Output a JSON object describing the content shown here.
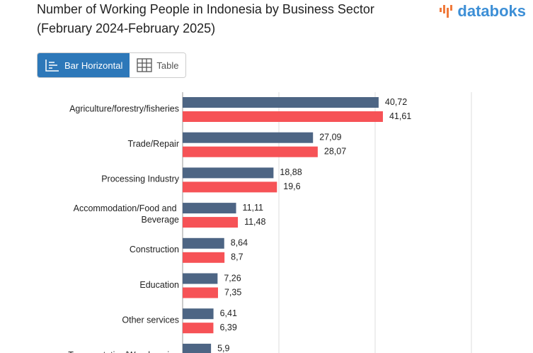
{
  "header": {
    "title_line1": "Number of Working People in Indonesia by Business Sector",
    "title_line2": "(February 2024-February 2025)",
    "logo": "databoks"
  },
  "buttons": [
    "Bar Horizontal",
    "Table"
  ],
  "chart_data": {
    "type": "bar_horizontal",
    "categories": [
      "Agriculture/forestry/fisheries",
      "Trade/Repair",
      "Processing Industry",
      "Accommodation/Food and Beverage",
      "Construction",
      "Education",
      "Other services",
      "Transportation/Warehousing"
    ],
    "series": [
      {
        "color": "#4d6584",
        "values": [
          40.72,
          27.09,
          18.88,
          11.11,
          8.64,
          7.26,
          6.41,
          5.9
        ],
        "value_labels": [
          "40,72",
          "27,09",
          "18,88",
          "11,11",
          "8,64",
          "7,26",
          "6,41",
          "5,9"
        ]
      },
      {
        "color": "#f65256",
        "values": [
          41.61,
          28.07,
          19.6,
          11.48,
          8.7,
          7.35,
          6.39,
          null
        ],
        "value_labels": [
          "41,61",
          "28,07",
          "19,6",
          "11,48",
          "8,7",
          "7,35",
          "6,39",
          null
        ]
      }
    ],
    "xlim": [
      0,
      60
    ],
    "xticks": [
      0,
      20,
      40,
      60
    ],
    "grid": true
  }
}
